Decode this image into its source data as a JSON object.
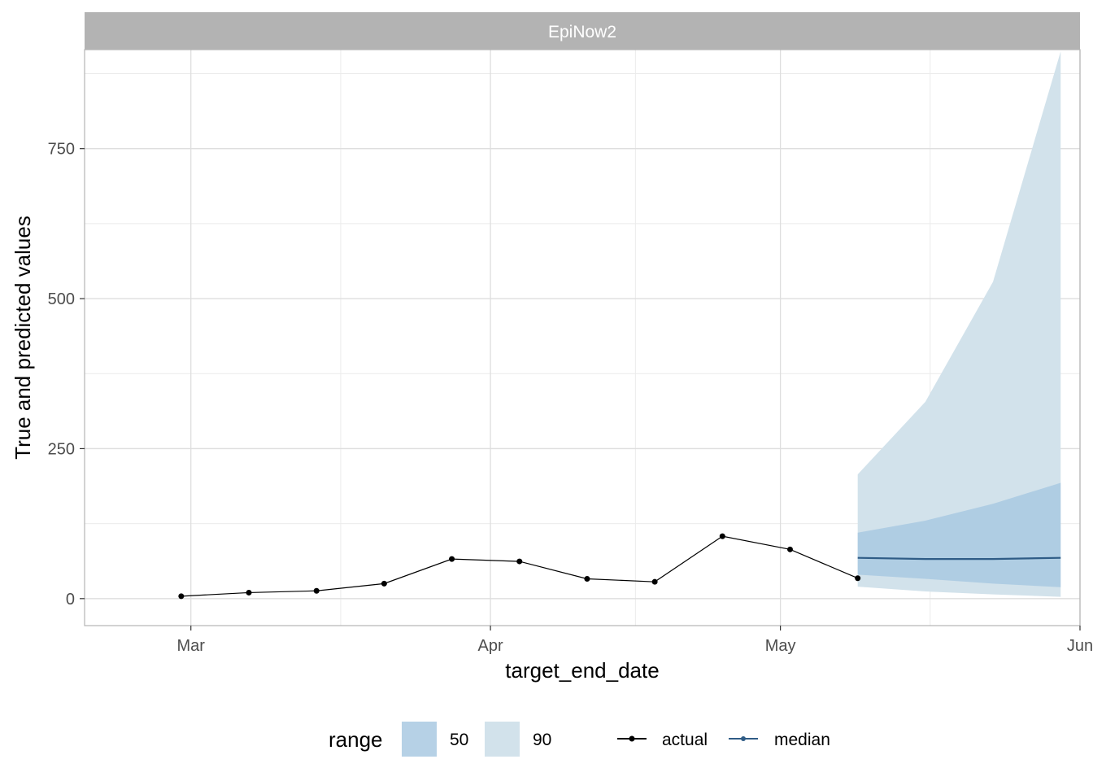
{
  "chart_data": {
    "type": "line",
    "facet_title": "EpiNow2",
    "xlabel": "target_end_date",
    "ylabel": "True and predicted values",
    "x_ticks": [
      "Mar",
      "Apr",
      "May",
      "Jun"
    ],
    "y_ticks": [
      0,
      250,
      500,
      750
    ],
    "ylim": [
      -45,
      915
    ],
    "xlim": [
      "2020-02-19",
      "2020-06-01"
    ],
    "grid": true,
    "legend_position": "bottom",
    "legend": {
      "range_title": "range",
      "range_items": [
        "50",
        "90"
      ],
      "line_items": [
        "actual",
        "median"
      ]
    },
    "colors": {
      "actual": "#000000",
      "median": "#2f5c86",
      "range_50": "#a9c9e2",
      "range_90": "#d2e2eb",
      "strip_bg": "#b3b3b3"
    },
    "series": [
      {
        "name": "actual",
        "x": [
          "2020-02-29",
          "2020-03-07",
          "2020-03-14",
          "2020-03-21",
          "2020-03-28",
          "2020-04-04",
          "2020-04-11",
          "2020-04-18",
          "2020-04-25",
          "2020-05-02",
          "2020-05-09"
        ],
        "values": [
          4,
          10,
          13,
          25,
          66,
          62,
          33,
          28,
          104,
          82,
          34
        ]
      },
      {
        "name": "median",
        "x": [
          "2020-05-09",
          "2020-05-16",
          "2020-05-23",
          "2020-05-30"
        ],
        "values": [
          68,
          66,
          66,
          68
        ]
      }
    ],
    "ranges": [
      {
        "name": "90",
        "x": [
          "2020-05-09",
          "2020-05-16",
          "2020-05-23",
          "2020-05-30"
        ],
        "lower": [
          20,
          12,
          7,
          3
        ],
        "upper": [
          207,
          328,
          528,
          912
        ]
      },
      {
        "name": "50",
        "x": [
          "2020-05-09",
          "2020-05-16",
          "2020-05-23",
          "2020-05-30"
        ],
        "lower": [
          40,
          33,
          25,
          19
        ],
        "upper": [
          110,
          130,
          158,
          193
        ]
      }
    ]
  }
}
